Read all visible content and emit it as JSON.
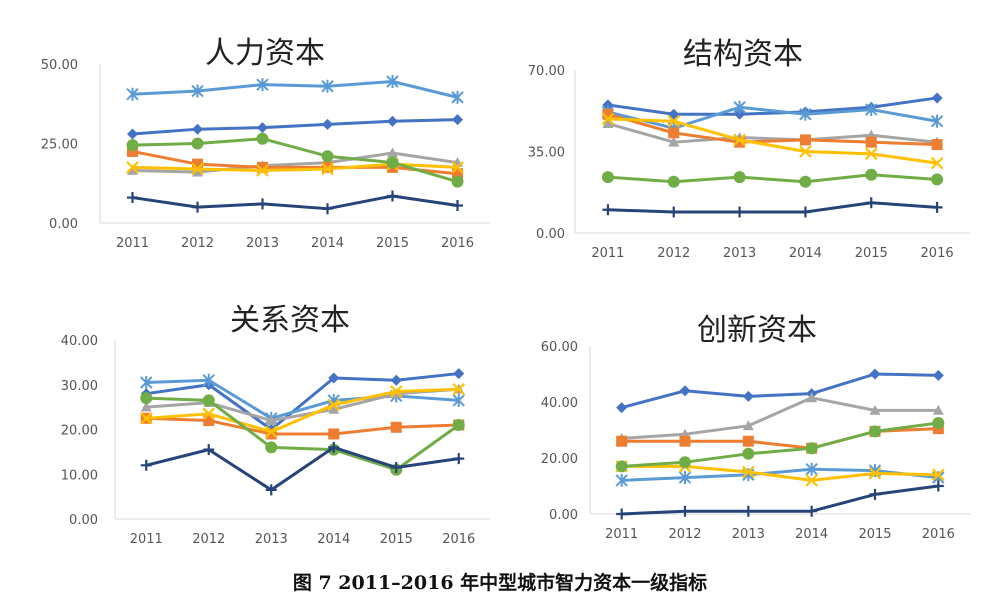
{
  "figure_caption": "图 7   2011–2016 年中型城市智力资本一级指标",
  "series_colors": [
    "#4472C4",
    "#5B9BD5",
    "#A5A5A5",
    "#ED7D31",
    "#FFC000",
    "#70AD47",
    "#264478"
  ],
  "series_markers": [
    "diamond",
    "star",
    "triangle",
    "square",
    "x",
    "circle",
    "plus"
  ],
  "chart_data": [
    {
      "type": "line",
      "title": "人力资本",
      "x": [
        "2011",
        "2012",
        "2013",
        "2014",
        "2015",
        "2016"
      ],
      "ylim": [
        0,
        50
      ],
      "yticks": [
        "0.00",
        "25.00",
        "50.00"
      ],
      "grid": false,
      "legend": "none",
      "series": [
        {
          "values": [
            28,
            29.5,
            30,
            31,
            32,
            32.5
          ]
        },
        {
          "values": [
            40.5,
            41.5,
            43.5,
            43,
            44.5,
            39.5
          ]
        },
        {
          "values": [
            16.5,
            16,
            18,
            19,
            22,
            19
          ]
        },
        {
          "values": [
            22.5,
            18.5,
            17.5,
            17.5,
            17.5,
            15.5
          ]
        },
        {
          "values": [
            17.5,
            17,
            16.5,
            17,
            18.5,
            17.5
          ]
        },
        {
          "values": [
            24.5,
            25,
            26.5,
            21,
            19,
            13
          ]
        },
        {
          "values": [
            8,
            5,
            6,
            4.5,
            8.5,
            5.5
          ]
        }
      ]
    },
    {
      "type": "line",
      "title": "结构资本",
      "x": [
        "2011",
        "2012",
        "2013",
        "2014",
        "2015",
        "2016"
      ],
      "ylim": [
        0,
        70
      ],
      "yticks": [
        "0.00",
        "35.00",
        "70.00"
      ],
      "grid": false,
      "legend": "none",
      "series": [
        {
          "values": [
            55,
            51,
            51,
            52,
            54,
            58
          ]
        },
        {
          "values": [
            52,
            45,
            54,
            51,
            53,
            48
          ]
        },
        {
          "values": [
            47,
            39,
            41,
            40,
            42,
            39
          ]
        },
        {
          "values": [
            51,
            43,
            39,
            40,
            39,
            38
          ]
        },
        {
          "values": [
            49,
            48,
            40,
            35,
            34,
            30
          ]
        },
        {
          "values": [
            24,
            22,
            24,
            22,
            25,
            23
          ]
        },
        {
          "values": [
            10,
            9,
            9,
            9,
            13,
            11
          ]
        }
      ]
    },
    {
      "type": "line",
      "title": "关系资本",
      "x": [
        "2011",
        "2012",
        "2013",
        "2014",
        "2015",
        "2016"
      ],
      "ylim": [
        0,
        40
      ],
      "yticks": [
        "0.00",
        "10.00",
        "20.00",
        "30.00",
        "40.00"
      ],
      "grid": false,
      "legend": "none",
      "series": [
        {
          "values": [
            28,
            30,
            20,
            31.5,
            31,
            32.5
          ]
        },
        {
          "values": [
            30.5,
            31,
            22.5,
            26.5,
            27.5,
            26.5
          ]
        },
        {
          "values": [
            25,
            26,
            22,
            24.5,
            28,
            29
          ]
        },
        {
          "values": [
            22.5,
            22,
            19,
            19,
            20.5,
            21
          ]
        },
        {
          "values": [
            22.5,
            23.5,
            19.5,
            25.5,
            28.5,
            29
          ]
        },
        {
          "values": [
            27,
            26.5,
            16,
            15.5,
            11,
            21
          ]
        },
        {
          "values": [
            12,
            15.5,
            6.5,
            16,
            11.5,
            13.5
          ]
        }
      ]
    },
    {
      "type": "line",
      "title": "创新资本",
      "x": [
        "2011",
        "2012",
        "2013",
        "2014",
        "2015",
        "2016"
      ],
      "ylim": [
        0,
        60
      ],
      "yticks": [
        "0.00",
        "20.00",
        "40.00",
        "60.00"
      ],
      "grid": false,
      "legend": "none",
      "series": [
        {
          "values": [
            38,
            44,
            42,
            43,
            50,
            49.5
          ]
        },
        {
          "values": [
            12,
            13,
            14,
            16,
            15.5,
            13
          ]
        },
        {
          "values": [
            27,
            28.5,
            31.5,
            41.5,
            37,
            37
          ]
        },
        {
          "values": [
            26,
            26,
            26,
            23.5,
            29.5,
            30.5
          ]
        },
        {
          "values": [
            17,
            17,
            15,
            12,
            14.5,
            14
          ]
        },
        {
          "values": [
            17,
            18.5,
            21.5,
            23.5,
            29.5,
            32.5
          ]
        },
        {
          "values": [
            0,
            1,
            1,
            1,
            7,
            10
          ]
        }
      ]
    }
  ]
}
